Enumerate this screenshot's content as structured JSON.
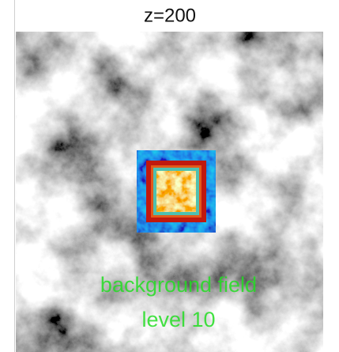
{
  "title": "z=200",
  "annotation": [
    "background field",
    "level 10"
  ]
}
